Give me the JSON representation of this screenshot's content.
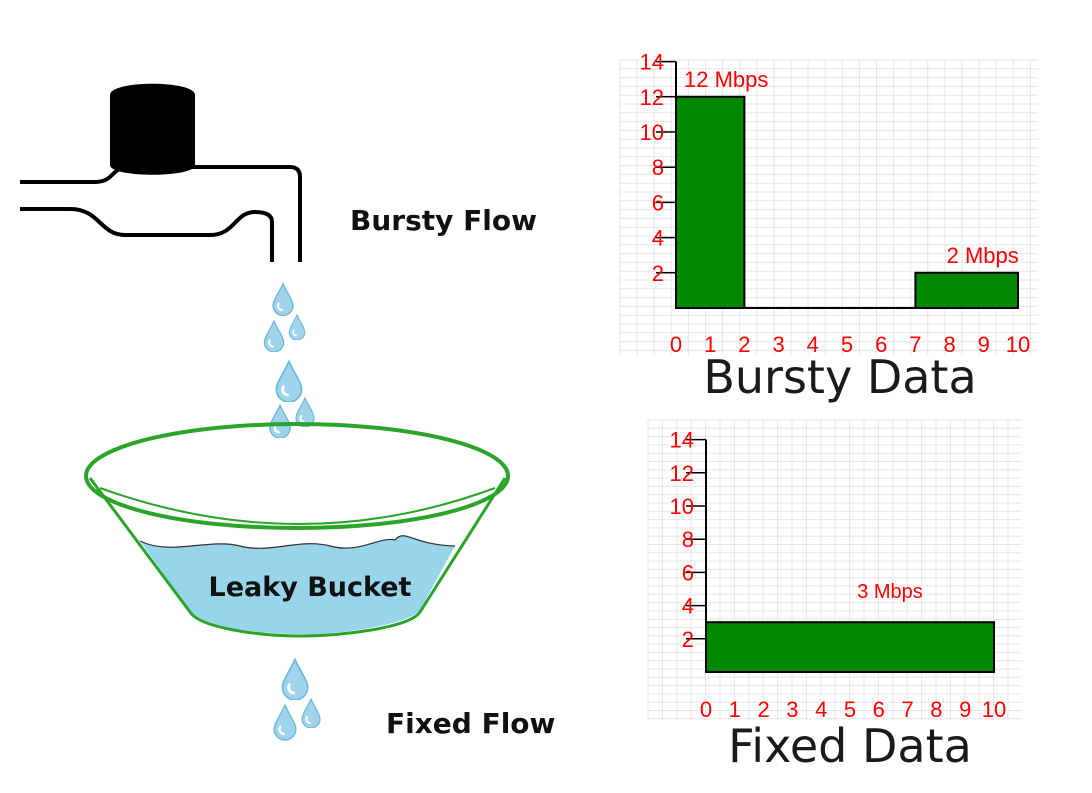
{
  "labels": {
    "bursty_flow": "Bursty Flow",
    "fixed_flow": "Fixed Flow",
    "bucket": "Leaky Bucket"
  },
  "colors": {
    "bar": "#008800",
    "water": "#99d5ea",
    "bucket_outline": "#2aa52a",
    "drop": "#9fd4ec",
    "axis_text": "#ff0000"
  },
  "chart_data": [
    {
      "type": "bar",
      "title": "Bursty Data",
      "xlim": [
        0,
        10
      ],
      "ylim": [
        0,
        14
      ],
      "xticks": [
        0,
        1,
        2,
        3,
        4,
        5,
        6,
        7,
        8,
        9,
        10
      ],
      "yticks": [
        2,
        4,
        6,
        8,
        10,
        12,
        14
      ],
      "bars": [
        {
          "x0": 0,
          "x1": 2,
          "value": 12,
          "label": "12 Mbps"
        },
        {
          "x0": 7,
          "x1": 10,
          "value": 2,
          "label": "2 Mbps"
        }
      ],
      "grid": true
    },
    {
      "type": "bar",
      "title": "Fixed Data",
      "xlim": [
        0,
        10
      ],
      "ylim": [
        0,
        14
      ],
      "xticks": [
        0,
        1,
        2,
        3,
        4,
        5,
        6,
        7,
        8,
        9,
        10
      ],
      "yticks": [
        2,
        4,
        6,
        8,
        10,
        12,
        14
      ],
      "bars": [
        {
          "x0": 0,
          "x1": 10,
          "value": 3,
          "label": "3 Mbps"
        }
      ],
      "grid": true
    }
  ]
}
